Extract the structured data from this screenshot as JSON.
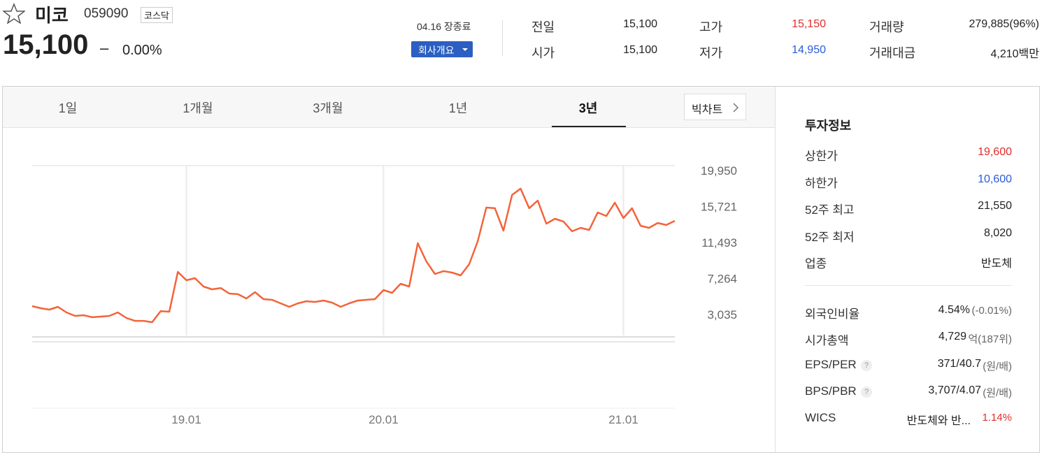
{
  "header": {
    "name": "미코",
    "code": "059090",
    "market": "코스닥",
    "price": "15,100",
    "change_sign": "–",
    "change_rate": "0.00%",
    "status": "04.16 장종료",
    "company_button": "회사개요"
  },
  "quotes": [
    {
      "label": "전일",
      "value": "15,100"
    },
    {
      "label": "시가",
      "value": "15,100"
    },
    {
      "label": "고가",
      "value": "15,150",
      "color": "#e52a2a"
    },
    {
      "label": "저가",
      "value": "14,950",
      "color": "#2a5bd7"
    },
    {
      "label": "거래량",
      "value": "279,885(96%)"
    },
    {
      "label": "거래대금",
      "value": "4,210백만"
    }
  ],
  "tabs": {
    "items": [
      "1일",
      "1개월",
      "3개월",
      "1년",
      "3년"
    ],
    "active": 4,
    "big_chart": "빅차트"
  },
  "chart_data": {
    "type": "line",
    "color": "#f4633a",
    "categories": [
      null,
      null,
      null,
      null,
      null,
      null,
      null,
      null,
      null,
      null,
      null,
      null,
      null,
      null,
      null,
      null,
      null,
      null,
      "19.01",
      null,
      null,
      null,
      null,
      null,
      null,
      null,
      null,
      null,
      null,
      null,
      null,
      null,
      null,
      null,
      null,
      null,
      null,
      null,
      null,
      null,
      null,
      "20.01",
      null,
      null,
      null,
      null,
      null,
      null,
      null,
      null,
      null,
      null,
      null,
      null,
      null,
      null,
      null,
      null,
      null,
      null,
      null,
      null,
      null,
      null,
      null,
      null,
      null,
      null,
      null,
      "21.01",
      null,
      null,
      null,
      null,
      null,
      null
    ],
    "values": [
      4020,
      3770,
      3610,
      3940,
      3280,
      2870,
      2950,
      2710,
      2790,
      2870,
      3280,
      2620,
      2290,
      2290,
      2130,
      3440,
      3360,
      8040,
      7060,
      7300,
      6320,
      5990,
      6150,
      5500,
      5420,
      4920,
      5660,
      4840,
      4760,
      4350,
      3940,
      4350,
      4590,
      4510,
      4680,
      4430,
      3940,
      4350,
      4680,
      4760,
      4840,
      5910,
      5580,
      6650,
      6320,
      11410,
      9270,
      7800,
      8130,
      7960,
      7630,
      8950,
      11660,
      15600,
      15520,
      12890,
      17080,
      17820,
      15520,
      16420,
      13710,
      14280,
      13960,
      12810,
      13220,
      12970,
      15020,
      14610,
      16170,
      14370,
      15520,
      13460,
      13220,
      13790,
      13550,
      14040
    ],
    "ylim": [
      570,
      20525
    ],
    "yticks": [
      {
        "value": 3035,
        "label": "3,035"
      },
      {
        "value": 7264,
        "label": "7,264"
      },
      {
        "value": 11493,
        "label": "11,493"
      },
      {
        "value": 15721,
        "label": "15,721"
      },
      {
        "value": 19950,
        "label": "19,950"
      }
    ]
  },
  "invest": {
    "title": "투자정보",
    "rows": [
      {
        "label": "상한가",
        "value": "19,600",
        "color": "#e52a2a"
      },
      {
        "label": "하한가",
        "value": "10,600",
        "color": "#2a5bd7"
      },
      {
        "label": "52주 최고",
        "value": "21,550"
      },
      {
        "label": "52주 최저",
        "value": "8,020"
      },
      {
        "label": "업종",
        "value": "반도체"
      }
    ],
    "rows2": [
      {
        "label": "외국인비율",
        "value": "4.54%",
        "note": "(-0.01%)"
      },
      {
        "label": "시가총액",
        "value": "4,729",
        "note": "억(187위)"
      },
      {
        "label": "EPS/PER",
        "help": "?",
        "value": "371/40.7",
        "note": "(원/배)"
      },
      {
        "label": "BPS/PBR",
        "help": "?",
        "value": "3,707/4.07",
        "note": "(원/배)"
      },
      {
        "label": "WICS",
        "value": "반도체와 반...",
        "note": "1.14%",
        "note_color": "#e52a2a"
      }
    ]
  }
}
